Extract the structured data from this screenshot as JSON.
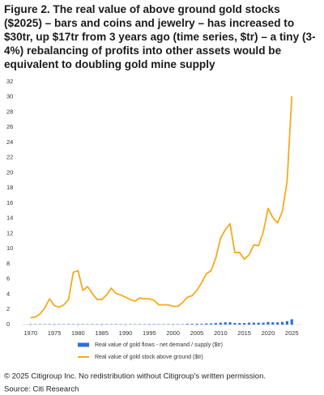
{
  "chart_data": {
    "type": "line",
    "title": "Figure 2. The real value of above ground gold stocks ($2025) – bars and coins and jewelry – has increased to $30tr, up $17tr from 3 years ago (time series, $tr) – a tiny (3-4%) rebalancing of profits into other assets would be equivalent to doubling gold mine supply",
    "x": [
      1970,
      1971,
      1972,
      1973,
      1974,
      1975,
      1976,
      1977,
      1978,
      1979,
      1980,
      1981,
      1982,
      1983,
      1984,
      1985,
      1986,
      1987,
      1988,
      1989,
      1990,
      1991,
      1992,
      1993,
      1994,
      1995,
      1996,
      1997,
      1998,
      1999,
      2000,
      2001,
      2002,
      2003,
      2004,
      2005,
      2006,
      2007,
      2008,
      2009,
      2010,
      2011,
      2012,
      2013,
      2014,
      2015,
      2016,
      2017,
      2018,
      2019,
      2020,
      2021,
      2022,
      2023,
      2024,
      2025
    ],
    "series": [
      {
        "name": "Real value of gold flows - net demand / supply ($tr)",
        "type": "bar",
        "color": "#2f6fd6",
        "values": [
          0.05,
          0.05,
          0.05,
          0.05,
          0.05,
          0.05,
          0.05,
          0.05,
          0.05,
          0.05,
          0.05,
          0.05,
          0.05,
          0.05,
          0.05,
          0.05,
          0.05,
          0.05,
          0.05,
          0.05,
          0.05,
          0.05,
          0.05,
          0.05,
          0.05,
          0.05,
          0.05,
          0.05,
          0.05,
          0.05,
          0.05,
          0.05,
          0.05,
          0.1,
          0.1,
          0.1,
          0.1,
          0.15,
          0.15,
          0.2,
          0.25,
          0.3,
          0.3,
          0.2,
          0.2,
          0.2,
          0.25,
          0.25,
          0.25,
          0.25,
          0.35,
          0.3,
          0.3,
          0.35,
          0.45,
          0.7
        ]
      },
      {
        "name": "Real value of gold stock above ground ($tr)",
        "type": "line",
        "color": "#f5aa1c",
        "values": [
          0.9,
          1.0,
          1.4,
          2.2,
          3.4,
          2.5,
          2.3,
          2.6,
          3.3,
          6.9,
          7.1,
          4.5,
          5.0,
          4.1,
          3.3,
          3.3,
          3.9,
          4.8,
          4.1,
          3.9,
          3.6,
          3.3,
          3.1,
          3.5,
          3.4,
          3.4,
          3.2,
          2.6,
          2.6,
          2.6,
          2.4,
          2.4,
          2.9,
          3.6,
          3.8,
          4.5,
          5.5,
          6.7,
          7.1,
          8.8,
          11.4,
          12.5,
          13.3,
          9.5,
          9.5,
          8.6,
          9.2,
          10.5,
          10.4,
          12.2,
          15.3,
          14.1,
          13.4,
          14.9,
          18.8,
          30.1
        ]
      }
    ],
    "xlim": [
      1968,
      2027
    ],
    "xticks": [
      1970,
      1975,
      1980,
      1985,
      1990,
      1995,
      2000,
      2005,
      2010,
      2015,
      2020,
      2025
    ],
    "ylim": [
      0,
      32
    ],
    "yticks": [
      0,
      2,
      4,
      6,
      8,
      10,
      12,
      14,
      16,
      18,
      20,
      22,
      24,
      26,
      28,
      30,
      32
    ],
    "grid": false,
    "legend": "bottom",
    "notes": [
      "© 2025 Citigroup Inc. No redistribution without Citigroup's written permission.",
      "Source: Citi Research"
    ]
  }
}
